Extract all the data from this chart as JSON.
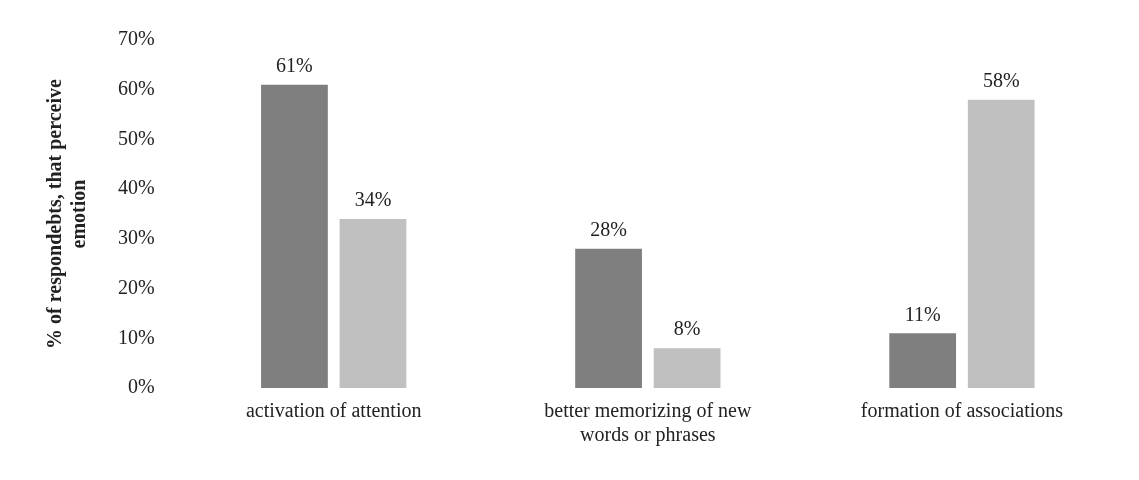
{
  "chart_data": {
    "type": "bar",
    "ylabel": "% of respondebts, that perceive emotion",
    "categories": [
      "activation of attention",
      "better memorizing of new words or phrases",
      "formation of associations"
    ],
    "series": [
      {
        "color": "#7f7f7f",
        "values": [
          61,
          28,
          11
        ],
        "value_labels": [
          "61%",
          "28%",
          "11%"
        ]
      },
      {
        "color": "#c0c0c0",
        "values": [
          34,
          8,
          58
        ],
        "value_labels": [
          "34%",
          "8%",
          "58%"
        ]
      }
    ],
    "ylim": [
      0,
      70
    ],
    "yticks": [
      {
        "value": 0,
        "label": "0%"
      },
      {
        "value": 10,
        "label": "10%"
      },
      {
        "value": 20,
        "label": "20%"
      },
      {
        "value": 30,
        "label": "30%"
      },
      {
        "value": 40,
        "label": "40%"
      },
      {
        "value": 50,
        "label": "50%"
      },
      {
        "value": 60,
        "label": "60%"
      },
      {
        "value": 70,
        "label": "70%"
      }
    ],
    "grid": false,
    "legend": false
  }
}
